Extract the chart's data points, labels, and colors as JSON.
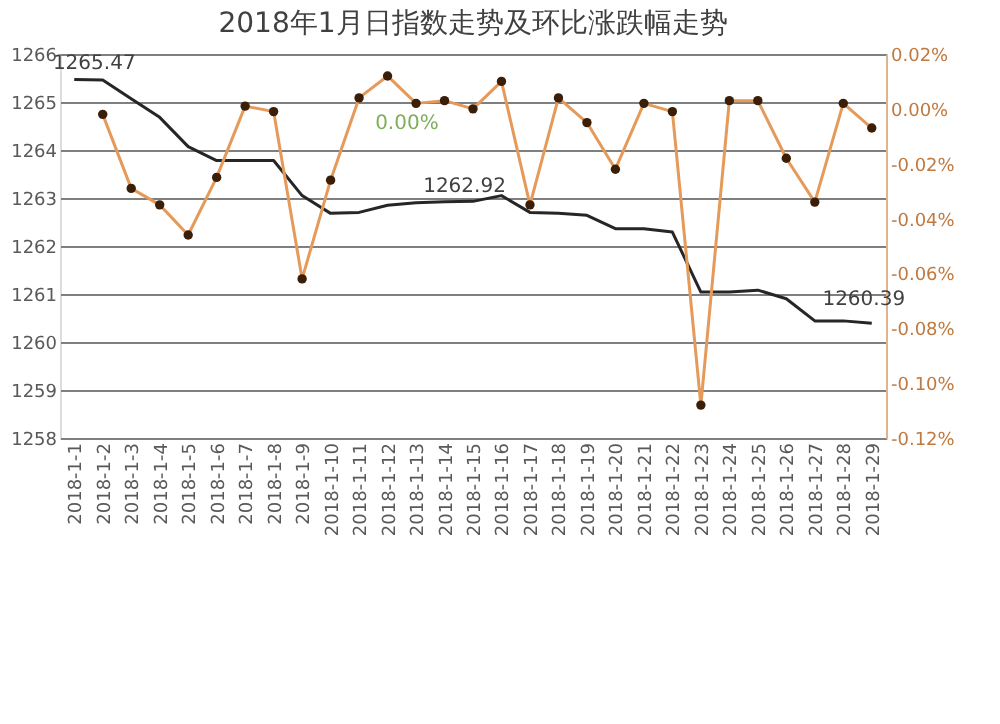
{
  "chart_data": {
    "type": "line",
    "title": "2018年1月日指数走势及环比涨跌幅走势",
    "categories": [
      "2018-1-1",
      "2018-1-2",
      "2018-1-3",
      "2018-1-4",
      "2018-1-5",
      "2018-1-6",
      "2018-1-7",
      "2018-1-8",
      "2018-1-9",
      "2018-1-10",
      "2018-1-11",
      "2018-1-12",
      "2018-1-13",
      "2018-1-14",
      "2018-1-15",
      "2018-1-16",
      "2018-1-17",
      "2018-1-18",
      "2018-1-19",
      "2018-1-20",
      "2018-1-21",
      "2018-1-22",
      "2018-1-23",
      "2018-1-24",
      "2018-1-25",
      "2018-1-26",
      "2018-1-27",
      "2018-1-28",
      "2018-1-29"
    ],
    "series": [
      {
        "color": "#262626",
        "marker": "none",
        "values": [
          1265.47,
          1265.46,
          1265.07,
          1264.68,
          1264.07,
          1263.78,
          1263.78,
          1263.78,
          1263.05,
          1262.68,
          1262.7,
          1262.85,
          1262.9,
          1262.92,
          1262.93,
          1263.05,
          1262.7,
          1262.68,
          1262.64,
          1262.36,
          1262.36,
          1262.29,
          1261.04,
          1261.04,
          1261.08,
          1260.9,
          1260.44,
          1260.44,
          1260.39
        ]
      },
      {
        "color": "#e59a5a",
        "axis": "y2",
        "marker": "circle",
        "values": [
          null,
          -0.002,
          -0.029,
          -0.035,
          -0.046,
          -0.025,
          0.001,
          -0.001,
          -0.062,
          -0.026,
          0.004,
          0.012,
          0.002,
          0.003,
          0.0,
          0.01,
          -0.035,
          0.004,
          -0.005,
          -0.022,
          0.002,
          -0.001,
          -0.108,
          0.003,
          0.003,
          -0.018,
          -0.034,
          0.002,
          -0.007
        ]
      }
    ],
    "ylim": [
      1258,
      1266
    ],
    "yticks": [
      1258,
      1259,
      1260,
      1261,
      1262,
      1263,
      1264,
      1265,
      1266
    ],
    "y2lim": [
      -0.12,
      0.02
    ],
    "y2ticks": [
      {
        "value": -0.12,
        "label": "-0.12%"
      },
      {
        "value": -0.1,
        "label": "-0.10%"
      },
      {
        "value": -0.08,
        "label": "-0.08%"
      },
      {
        "value": -0.06,
        "label": "-0.06%"
      },
      {
        "value": -0.04,
        "label": "-0.04%"
      },
      {
        "value": -0.02,
        "label": "-0.02%"
      },
      {
        "value": 0,
        "label": "0.00%"
      },
      {
        "value": 0.02,
        "label": "0.02%"
      }
    ],
    "grid": "y",
    "legend": false,
    "annotations": [
      {
        "text": "1265.47",
        "x": "2018-1-1",
        "y": 1265.47
      },
      {
        "text": "1262.92",
        "x": "2018-1-14",
        "y": 1262.92
      },
      {
        "text": "1260.39",
        "x": "2018-1-29",
        "y": 1260.39
      },
      "0.00%"
    ]
  }
}
